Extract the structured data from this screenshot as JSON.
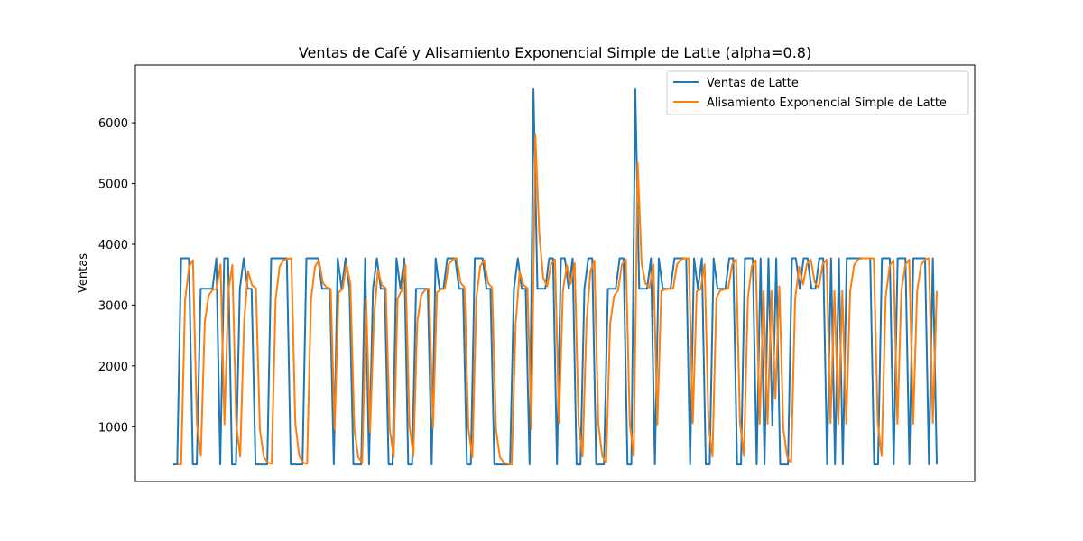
{
  "chart_data": {
    "type": "line",
    "title": "Ventas de Café y Alisamiento Exponencial Simple de Latte (alpha=0.8)",
    "xlabel": "",
    "ylabel": "Ventas",
    "ylim": [
      100,
      6950
    ],
    "yticks": [
      1000,
      2000,
      3000,
      4000,
      5000,
      6000
    ],
    "legend_position": "upper-right",
    "grid": false,
    "series": [
      {
        "name": "Ventas de Latte",
        "color": "#1f77b4",
        "values": [
          380,
          380,
          3770,
          3770,
          3770,
          380,
          380,
          3270,
          3270,
          3270,
          3270,
          3770,
          380,
          3770,
          3770,
          380,
          380,
          3270,
          3770,
          3270,
          3270,
          380,
          380,
          380,
          380,
          3770,
          3770,
          3770,
          3770,
          3770,
          380,
          380,
          380,
          380,
          3770,
          3770,
          3770,
          3770,
          3270,
          3270,
          3270,
          380,
          3770,
          3270,
          3770,
          3270,
          380,
          380,
          380,
          3770,
          380,
          3270,
          3770,
          3270,
          3270,
          380,
          380,
          3770,
          3270,
          3770,
          380,
          380,
          3270,
          3270,
          3270,
          3270,
          380,
          3770,
          3270,
          3270,
          3770,
          3770,
          3770,
          3270,
          3270,
          380,
          380,
          3770,
          3770,
          3770,
          3270,
          3270,
          380,
          380,
          380,
          380,
          380,
          3270,
          3770,
          3270,
          3270,
          380,
          6550,
          3270,
          3270,
          3270,
          3770,
          3770,
          380,
          3770,
          3770,
          3270,
          3770,
          380,
          380,
          3270,
          3770,
          3770,
          380,
          380,
          380,
          3270,
          3270,
          3270,
          3770,
          3770,
          380,
          380,
          6550,
          3270,
          3270,
          3270,
          3770,
          380,
          3770,
          3270,
          3270,
          3270,
          3770,
          3770,
          3770,
          3770,
          380,
          3770,
          3270,
          3770,
          380,
          380,
          3770,
          3270,
          3270,
          3270,
          3770,
          3770,
          380,
          380,
          3770,
          3770,
          3770,
          380,
          3770,
          380,
          3770,
          1020,
          3770,
          380,
          380,
          380,
          3770,
          3770,
          3270,
          3770,
          3770,
          3270,
          3270,
          3770,
          3770,
          380,
          3770,
          380,
          3770,
          380,
          3770,
          3770,
          3770,
          3770,
          3770,
          3770,
          3770,
          380,
          380,
          3770,
          3770,
          3770,
          380,
          3770,
          3770,
          3770,
          380,
          3770,
          3770,
          3770,
          3770,
          380,
          3770,
          380
        ]
      },
      {
        "name": "Alisamiento Exponencial Simple de Latte",
        "color": "#ff7f0e",
        "values": [
          null,
          380,
          380,
          3090,
          3630,
          3740,
          1050,
          520,
          2720,
          3160,
          3250,
          3270,
          3670,
          1040,
          3230,
          3660,
          1040,
          510,
          2720,
          3560,
          3330,
          3280,
          960,
          500,
          410,
          390,
          3090,
          3630,
          3740,
          3760,
          3770,
          1060,
          520,
          410,
          390,
          3090,
          3630,
          3740,
          3370,
          3290,
          3270,
          960,
          3210,
          3260,
          3670,
          3350,
          960,
          500,
          410,
          3100,
          920,
          2800,
          3580,
          3330,
          3280,
          960,
          500,
          3110,
          3240,
          3660,
          1040,
          510,
          2720,
          3160,
          3250,
          3270,
          980,
          3210,
          3260,
          3270,
          3670,
          3750,
          3770,
          3370,
          3290,
          960,
          500,
          3110,
          3640,
          3740,
          3360,
          3290,
          960,
          500,
          410,
          390,
          380,
          2690,
          3550,
          3330,
          3280,
          960,
          5800,
          4170,
          3450,
          3310,
          3680,
          3750,
          1060,
          3230,
          3660,
          3350,
          3690,
          1040,
          510,
          2720,
          3560,
          3730,
          1050,
          520,
          410,
          2690,
          3150,
          3240,
          3670,
          3750,
          1050,
          520,
          5340,
          3680,
          3350,
          3290,
          3670,
          1040,
          3230,
          3260,
          3270,
          3270,
          3670,
          3750,
          3770,
          3770,
          1060,
          3230,
          3260,
          3670,
          1040,
          510,
          3120,
          3240,
          3260,
          3270,
          3670,
          3750,
          1060,
          520,
          3120,
          3640,
          3740,
          1050,
          3230,
          1050,
          3230,
          1460,
          3310,
          970,
          500,
          410,
          3100,
          3630,
          3340,
          3680,
          3750,
          3370,
          3290,
          3670,
          3750,
          1060,
          3230,
          1050,
          3230,
          1050,
          3230,
          3660,
          3750,
          3770,
          3770,
          3770,
          3770,
          1060,
          520,
          3120,
          3640,
          3740,
          1050,
          3230,
          3660,
          3750,
          1050,
          3230,
          3660,
          3750,
          3770,
          1060,
          3230
        ]
      }
    ]
  }
}
